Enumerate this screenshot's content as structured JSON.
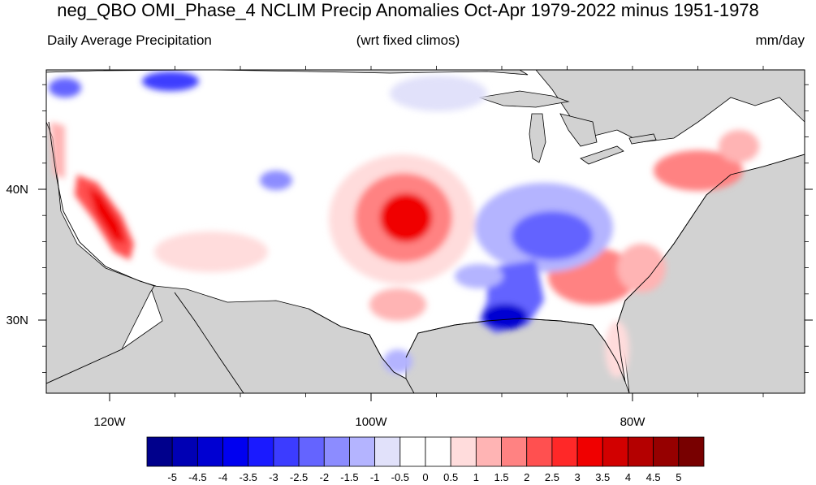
{
  "header": {
    "title": "neg_QBO OMI_Phase_4 NCLIM Precip Anomalies Oct-Apr 1979-2022 minus 1951-1978",
    "left_subtitle": "Daily Average Precipitation",
    "center_subtitle": "(wrt fixed climos)",
    "right_subtitle": "mm/day"
  },
  "map": {
    "lon_ticks": [
      {
        "value": -120,
        "label": "120W"
      },
      {
        "value": -100,
        "label": "100W"
      },
      {
        "value": -80,
        "label": "80W"
      }
    ],
    "lat_ticks": [
      {
        "value": 40,
        "label": "40N"
      },
      {
        "value": 30,
        "label": "30N"
      }
    ],
    "land_color": "#ffffff",
    "ocean_color": "#d2d2d2",
    "anomaly_regions": [
      {
        "region": "California coast and Sierra Nevada",
        "value": 3.5
      },
      {
        "region": "Northern California coast",
        "value": 1.5
      },
      {
        "region": "Central Plains (Kansas/Oklahoma)",
        "value": 3.5
      },
      {
        "region": "Central Plains surroundings",
        "value": 1.5
      },
      {
        "region": "Southeast (Georgia/Carolinas)",
        "value": 2.0
      },
      {
        "region": "Mid-Atlantic/Northeast",
        "value": 2.0
      },
      {
        "region": "Lower Mississippi/Louisiana coast",
        "value": -4.5
      },
      {
        "region": "Ohio/Tennessee Valley",
        "value": -2.0
      },
      {
        "region": "Upper Midwest",
        "value": -0.5
      },
      {
        "region": "Northern Rockies",
        "value": -3.0
      },
      {
        "region": "Central Rockies",
        "value": -1.5
      },
      {
        "region": "South Texas",
        "value": -1.0
      },
      {
        "region": "Florida",
        "value": 1.0
      }
    ]
  },
  "colorbar": {
    "labels": [
      "-5",
      "-4.5",
      "-4",
      "-3.5",
      "-3",
      "-2.5",
      "-2",
      "-1.5",
      "-1",
      "-0.5",
      "0",
      "0.5",
      "1",
      "1.5",
      "2",
      "2.5",
      "3",
      "3.5",
      "4",
      "4.5",
      "5"
    ],
    "colors": [
      "#00008c",
      "#0000b4",
      "#0000d2",
      "#0000f0",
      "#1a1aff",
      "#3c3cff",
      "#6464ff",
      "#8c8cff",
      "#b4b4ff",
      "#e1e1fa",
      "#ffffff",
      "#ffffff",
      "#ffdcdc",
      "#ffb4b4",
      "#ff8282",
      "#ff5050",
      "#ff2828",
      "#f00000",
      "#d20000",
      "#b40000",
      "#960000",
      "#780000"
    ]
  }
}
